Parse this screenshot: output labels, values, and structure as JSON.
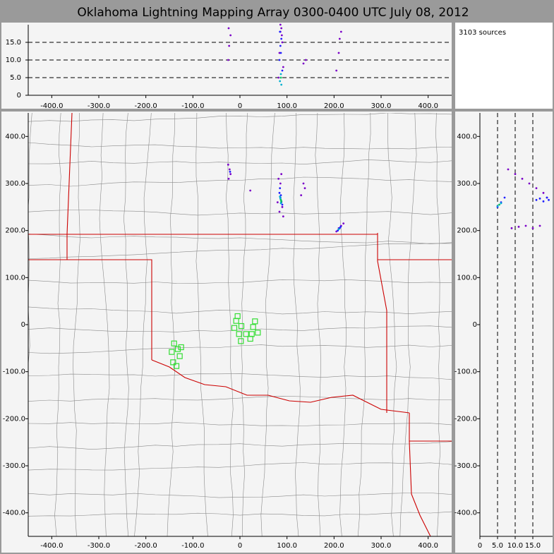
{
  "chart_data": [
    {
      "type": "scatter",
      "title": "Oklahoma Lightning Mapping Array   0300-0400 UTC  July 08, 2012",
      "annotation": "3103 sources",
      "xlim": [
        -450,
        450
      ],
      "ylim": [
        0,
        20
      ],
      "grid": true,
      "xticks": [
        {
          "value": -400,
          "label": "-400.0"
        },
        {
          "value": -300,
          "label": "-300.0"
        },
        {
          "value": -200,
          "label": "-200.0"
        },
        {
          "value": -100,
          "label": "-100.0"
        },
        0,
        {
          "value": 100,
          "label": "100.0"
        },
        {
          "value": 200,
          "label": "200.0"
        },
        {
          "value": 300,
          "label": "300.0"
        },
        {
          "value": 400,
          "label": "400.0"
        }
      ],
      "yticks": [
        0,
        {
          "value": 5,
          "label": "5.0"
        },
        {
          "value": 10,
          "label": "10.0"
        },
        {
          "value": 15,
          "label": "15.0"
        }
      ],
      "series": [
        {
          "color": "#7a00c8",
          "x": [
            -25,
            -23,
            -20,
            82,
            84,
            86,
            88,
            90,
            92,
            135,
            140,
            205,
            210,
            212,
            215,
            -24,
            86,
            89
          ],
          "values": [
            10,
            14,
            17,
            5,
            12,
            18,
            19,
            15,
            8,
            9,
            10,
            7,
            12,
            16,
            18,
            19,
            20,
            17
          ]
        },
        {
          "color": "#2020ff",
          "x": [
            84,
            86,
            88,
            90,
            85,
            87
          ],
          "values": [
            10,
            14,
            16,
            7,
            18,
            12
          ]
        },
        {
          "color": "#00b0d0",
          "x": [
            85,
            87,
            88
          ],
          "values": [
            4,
            6,
            3
          ]
        },
        {
          "color": "#00c060",
          "x": [
            87
          ],
          "values": [
            5
          ]
        }
      ]
    },
    {
      "type": "scatter",
      "xlim": [
        -450,
        450
      ],
      "ylim": [
        -450,
        450
      ],
      "grid": false,
      "xticks": [
        {
          "value": -400,
          "label": "-400.0"
        },
        {
          "value": -300,
          "label": "-300.0"
        },
        {
          "value": -200,
          "label": "-200.0"
        },
        {
          "value": -100,
          "label": "-100.0"
        },
        0,
        {
          "value": 100,
          "label": "100.0"
        },
        {
          "value": 200,
          "label": "200.0"
        },
        {
          "value": 300,
          "label": "300.0"
        },
        {
          "value": 400,
          "label": "400.0"
        }
      ],
      "yticks": [
        {
          "value": 400,
          "label": "400.0"
        },
        {
          "value": 300,
          "label": "300.0"
        },
        {
          "value": 200,
          "label": "200.0"
        },
        {
          "value": 100,
          "label": "100.0"
        },
        0,
        {
          "value": -100,
          "label": "-100.0"
        },
        {
          "value": -200,
          "label": "-200.0"
        },
        {
          "value": -300,
          "label": "-300.0"
        },
        {
          "value": -400,
          "label": "-400.0"
        }
      ],
      "series": [
        {
          "color": "#7a00c8",
          "x": [
            -25,
            -22,
            -20,
            -24,
            22,
            135,
            138,
            130,
            82,
            86,
            90,
            84,
            92,
            205,
            215,
            220,
            210,
            88,
            80
          ],
          "values": [
            340,
            330,
            320,
            310,
            285,
            300,
            290,
            275,
            310,
            300,
            250,
            240,
            230,
            198,
            210,
            215,
            205,
            320,
            260
          ]
        },
        {
          "color": "#2020ff",
          "x": [
            84,
            86,
            88,
            90,
            87,
            85,
            208,
            212,
            214,
            -21
          ],
          "values": [
            280,
            270,
            260,
            255,
            275,
            290,
            200,
            205,
            208,
            325
          ]
        },
        {
          "color": "#00b0d0",
          "x": [
            86,
            88,
            87,
            85,
            210
          ],
          "values": [
            268,
            262,
            258,
            272,
            203
          ]
        },
        {
          "color": "#00c060",
          "x": [
            87,
            88
          ],
          "values": [
            265,
            262
          ]
        },
        {
          "color": "#33dd33",
          "marker": "square",
          "x": [
            -5,
            -8,
            3,
            -12,
            13,
            25,
            28,
            32,
            22,
            38,
            -2,
            2,
            -140,
            -132,
            -125,
            -145,
            -128,
            -142,
            -135
          ],
          "values": [
            18,
            8,
            -3,
            -7,
            -20,
            -20,
            -5,
            7,
            -30,
            -17,
            -20,
            -35,
            -40,
            -52,
            -48,
            -58,
            -67,
            -80,
            -88
          ]
        }
      ]
    },
    {
      "type": "scatter",
      "xlim": [
        0,
        20
      ],
      "ylim": [
        -450,
        450
      ],
      "grid": true,
      "xticks": [
        0,
        {
          "value": 5,
          "label": "5.0"
        },
        {
          "value": 10,
          "label": "10.0"
        },
        {
          "value": 15,
          "label": "15.0"
        }
      ],
      "yticks": [
        {
          "value": 400,
          "label": "400.0"
        },
        {
          "value": 300,
          "label": "300.0"
        },
        {
          "value": 200,
          "label": "200.0"
        },
        {
          "value": 100,
          "label": "100.0"
        },
        0,
        {
          "value": -100,
          "label": "-100.0"
        },
        {
          "value": -200,
          "label": "-200.0"
        },
        {
          "value": -300,
          "label": "-300.0"
        },
        {
          "value": -400,
          "label": "-400.0"
        }
      ],
      "series": [
        {
          "color": "#7a00c8",
          "x": [
            8,
            10,
            12,
            14,
            16,
            18,
            19,
            9,
            11,
            13,
            15,
            17
          ],
          "values": [
            330,
            320,
            310,
            300,
            290,
            280,
            270,
            205,
            208,
            210,
            205,
            210
          ]
        },
        {
          "color": "#2020ff",
          "x": [
            5,
            6,
            7,
            16,
            17,
            18,
            19,
            19.5
          ],
          "values": [
            250,
            260,
            270,
            265,
            268,
            262,
            270,
            265
          ]
        },
        {
          "color": "#00b0d0",
          "x": [
            5,
            6
          ],
          "values": [
            252,
            258
          ]
        },
        {
          "color": "#00c060",
          "x": [
            5.5
          ],
          "values": [
            255
          ]
        }
      ]
    }
  ]
}
